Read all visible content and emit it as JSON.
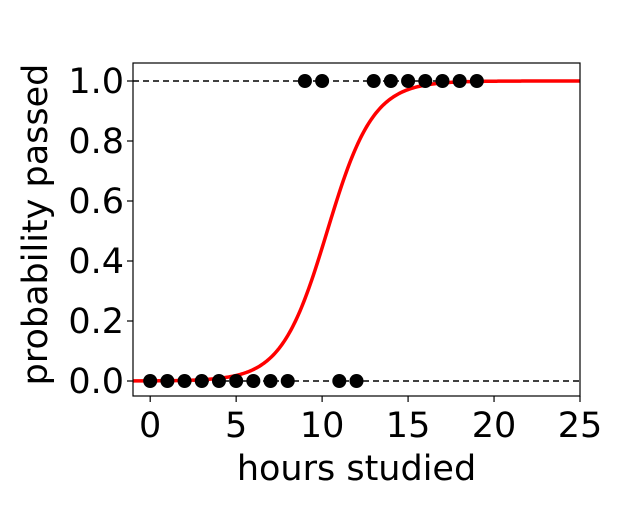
{
  "chart_data": {
    "type": "scatter",
    "xlabel": "hours studied",
    "ylabel": "probability passed",
    "xlim": [
      -1,
      25
    ],
    "ylim": [
      -0.05,
      1.06
    ],
    "xticks": [
      0,
      5,
      10,
      15,
      20,
      25
    ],
    "yticks": [
      0.0,
      0.2,
      0.4,
      0.6,
      0.8,
      1.0
    ],
    "xtick_labels": [
      "0",
      "5",
      "10",
      "15",
      "20",
      "25"
    ],
    "ytick_labels": [
      "0.0",
      "0.2",
      "0.4",
      "0.6",
      "0.8",
      "1.0"
    ],
    "grid": false,
    "legend": false,
    "reference_lines": [
      0,
      1
    ],
    "series": [
      {
        "type": "scatter",
        "color": "#000000",
        "points": [
          [
            0,
            0
          ],
          [
            1,
            0
          ],
          [
            2,
            0
          ],
          [
            3,
            0
          ],
          [
            4,
            0
          ],
          [
            5,
            0
          ],
          [
            6,
            0
          ],
          [
            7,
            0
          ],
          [
            8,
            0
          ],
          [
            9,
            1
          ],
          [
            10,
            1
          ],
          [
            11,
            0
          ],
          [
            12,
            0
          ],
          [
            13,
            1
          ],
          [
            14,
            1
          ],
          [
            15,
            1
          ],
          [
            16,
            1
          ],
          [
            17,
            1
          ],
          [
            18,
            1
          ],
          [
            19,
            1
          ]
        ]
      },
      {
        "type": "line",
        "color": "#ff0000",
        "function": "logistic",
        "midpoint": 10.3,
        "steepness": 0.75,
        "x_range": [
          -1,
          25
        ]
      }
    ]
  }
}
